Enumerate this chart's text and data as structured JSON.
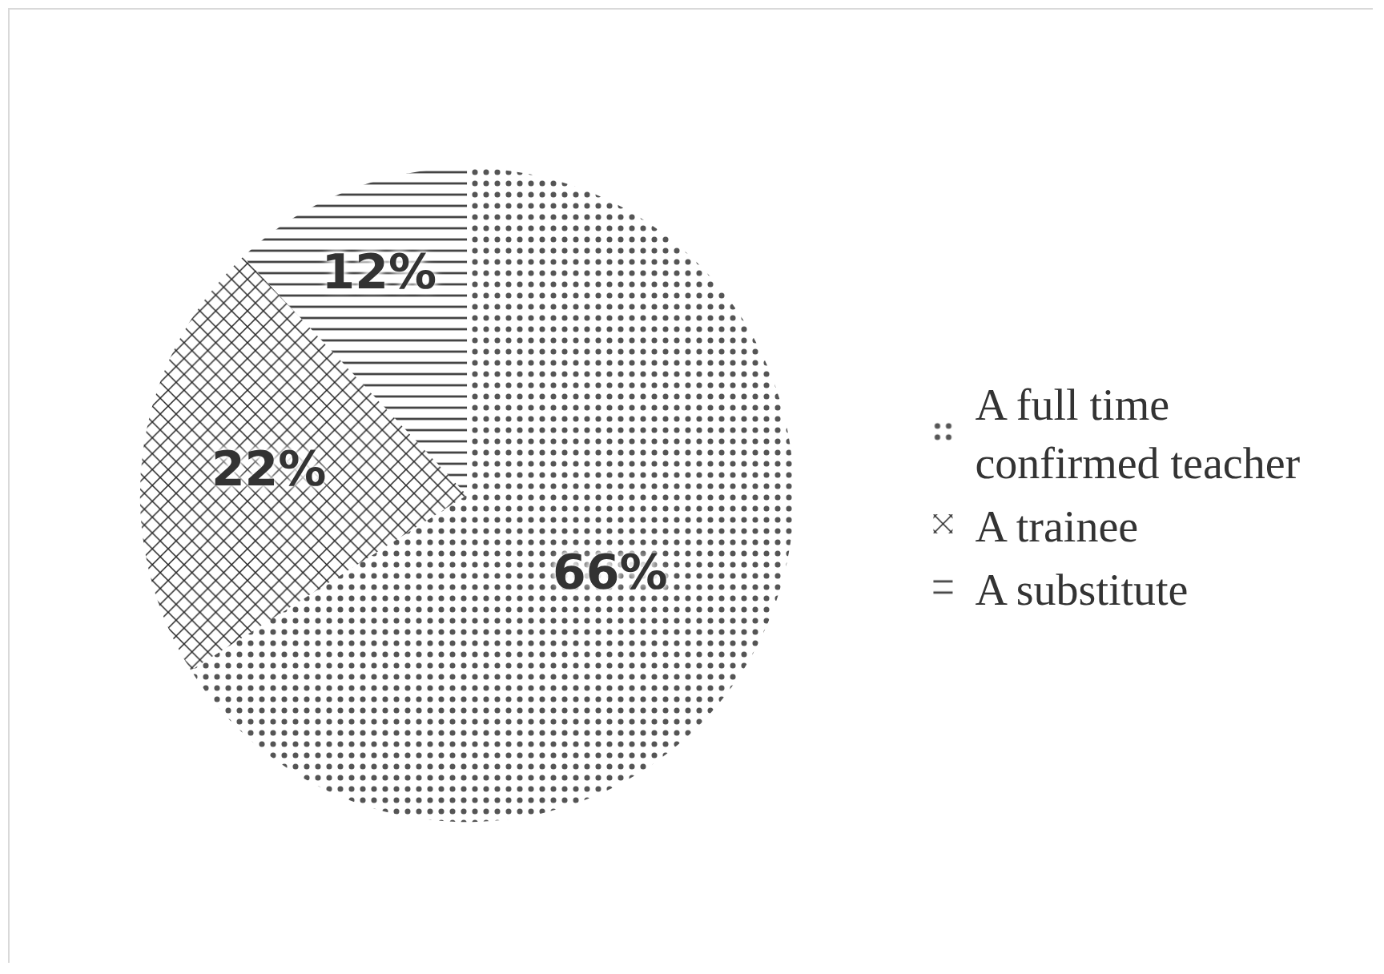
{
  "chart_data": {
    "type": "pie",
    "categories": [
      "A full time confirmed teacher",
      "A trainee",
      "A substitute"
    ],
    "values": [
      66,
      22,
      12
    ],
    "value_labels": [
      "66%",
      "22%",
      "12%"
    ],
    "colors": [
      "#555555",
      "#222222",
      "#444444"
    ],
    "legend": "right"
  }
}
